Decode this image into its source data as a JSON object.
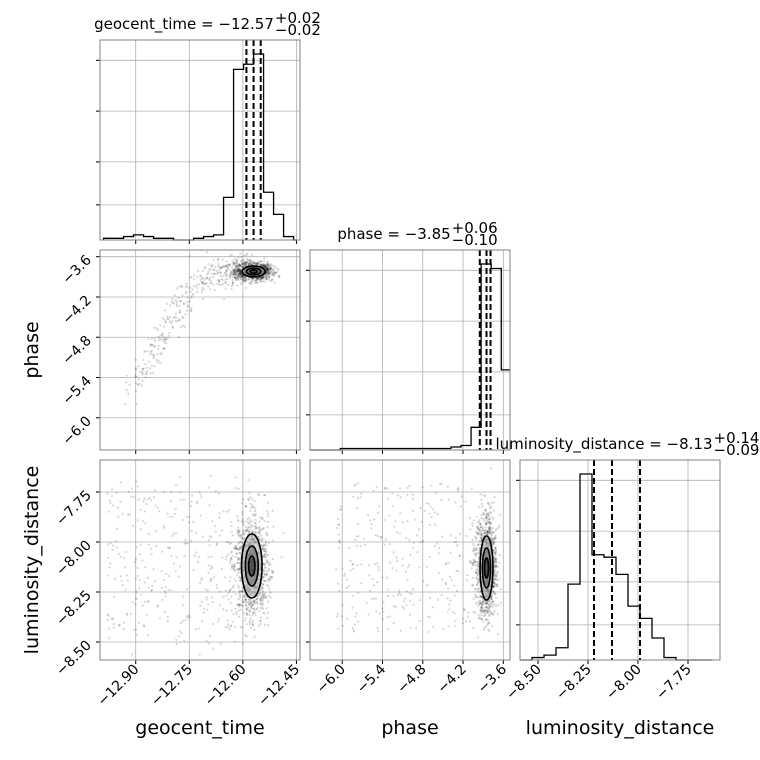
{
  "chart_data": {
    "type": "corner",
    "parameters": [
      "geocent_time",
      "phase",
      "luminosity_distance"
    ],
    "axis_labels": {
      "x": [
        "geocent_time",
        "phase",
        "luminosity_distance"
      ],
      "y": [
        "phase",
        "luminosity_distance"
      ]
    },
    "grid": true,
    "colors": {
      "hist": "#000000",
      "quantile": "#000000",
      "grid": "#b0b0b0",
      "frame": "#808080",
      "samples": "#000000"
    },
    "axes": {
      "geocent_time": {
        "range": [
          -13.0,
          -12.44
        ],
        "ticks": [
          -12.9,
          -12.75,
          -12.6,
          -12.45
        ],
        "tick_labels": [
          "−12.90",
          "−12.75",
          "−12.60",
          "−12.45"
        ]
      },
      "phase": {
        "range": [
          -6.48,
          -3.5
        ],
        "ticks": [
          -6.0,
          -5.4,
          -4.8,
          -4.2,
          -3.6
        ],
        "tick_labels": [
          "−6.0",
          "−5.4",
          "−4.8",
          "−4.2",
          "−3.6"
        ]
      },
      "luminosity_distance": {
        "range": [
          -8.59,
          -7.59
        ],
        "ticks": [
          -8.5,
          -8.25,
          -8.0,
          -7.75
        ],
        "tick_labels": [
          "−8.50",
          "−8.25",
          "−8.00",
          "−7.75"
        ]
      }
    },
    "titles": [
      {
        "param": "geocent_time",
        "main": "geocent_time = −12.57",
        "plus": "+0.02",
        "minus": "−0.02"
      },
      {
        "param": "phase",
        "main": "phase = −3.85",
        "plus": "+0.06",
        "minus": "−0.10"
      },
      {
        "param": "luminosity_distance",
        "main": "luminosity_distance = −8.13",
        "plus": "+0.14",
        "minus": "−0.09"
      }
    ],
    "histograms": {
      "geocent_time": {
        "bin_edges": [
          -12.99,
          -12.962,
          -12.934,
          -12.906,
          -12.878,
          -12.85,
          -12.822,
          -12.794,
          -12.766,
          -12.738,
          -12.71,
          -12.682,
          -12.654,
          -12.626,
          -12.598,
          -12.57,
          -12.542,
          -12.514,
          -12.486,
          -12.458,
          -12.45
        ],
        "counts": [
          1,
          1,
          2,
          3,
          2,
          1,
          1,
          0,
          0,
          1,
          2,
          3,
          25,
          100,
          103,
          109,
          28,
          15,
          2,
          0
        ]
      },
      "phase": {
        "bin_edges": [
          -6.48,
          -6.33,
          -6.18,
          -6.03,
          -5.88,
          -5.73,
          -5.58,
          -5.43,
          -5.28,
          -5.13,
          -4.98,
          -4.83,
          -4.68,
          -4.53,
          -4.38,
          -4.23,
          -4.08,
          -3.93,
          -3.78,
          -3.63,
          -3.5
        ],
        "counts": [
          0,
          0,
          0,
          1,
          1,
          1,
          1,
          1,
          1,
          1,
          1,
          1,
          1,
          1,
          2,
          3,
          15,
          123,
          120,
          53
        ]
      },
      "luminosity_distance": {
        "bin_edges": [
          -8.59,
          -8.53,
          -8.47,
          -8.41,
          -8.35,
          -8.29,
          -8.23,
          -8.17,
          -8.11,
          -8.05,
          -7.99,
          -7.93,
          -7.87,
          -7.81,
          -7.75,
          -7.69,
          -7.63
        ],
        "counts": [
          0,
          1,
          2,
          5,
          31,
          76,
          43,
          42,
          35,
          22,
          17,
          9,
          1,
          0,
          0,
          0
        ]
      }
    },
    "quantiles": {
      "geocent_time": [
        -12.59,
        -12.57,
        -12.55
      ],
      "phase": [
        -3.95,
        -3.85,
        -3.79
      ],
      "luminosity_distance": [
        -8.22,
        -8.13,
        -7.99
      ]
    },
    "contours": [
      {
        "x": "geocent_time",
        "y": "phase",
        "center": [
          -12.57,
          -3.82
        ],
        "sigma": [
          0.02,
          0.05
        ],
        "levels": [
          0.5,
          1.0,
          1.6
        ]
      },
      {
        "x": "geocent_time",
        "y": "luminosity_distance",
        "center": [
          -12.575,
          -8.12
        ],
        "sigma": [
          0.018,
          0.1
        ],
        "levels": [
          0.5,
          1.0,
          1.6
        ]
      },
      {
        "x": "phase",
        "y": "luminosity_distance",
        "center": [
          -3.85,
          -8.13
        ],
        "sigma": [
          0.06,
          0.1
        ],
        "levels": [
          0.5,
          1.0,
          1.6
        ]
      }
    ]
  }
}
